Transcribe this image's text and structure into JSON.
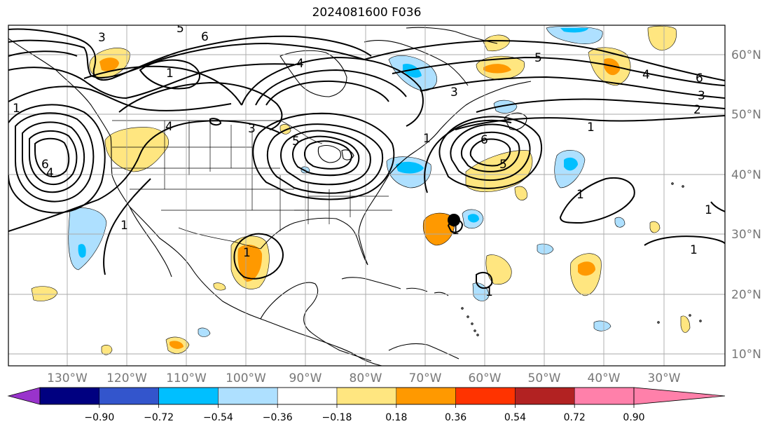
{
  "title": "2024081600 F036",
  "lat_labels": [
    "60°N",
    "50°N",
    "40°N",
    "30°N",
    "20°N",
    "10°N"
  ],
  "lon_labels": [
    "130°W",
    "120°W",
    "110°W",
    "100°W",
    "90°W",
    "80°W",
    "70°W",
    "60°W",
    "50°W",
    "40°W",
    "30°W"
  ],
  "colorbar": {
    "ticks": [
      "−0.90",
      "−0.72",
      "−0.54",
      "−0.36",
      "−0.18",
      "0.18",
      "0.36",
      "0.54",
      "0.72",
      "0.90"
    ],
    "colors": [
      "#9933cc",
      "#000080",
      "#3355cc",
      "#00bfff",
      "#aee0ff",
      "#ffffff",
      "#ffe680",
      "#ff9900",
      "#ff3300",
      "#b22222",
      "#ff80aa"
    ]
  },
  "fill_colors": {
    "light_yellow": "#ffe680",
    "orange": "#ff9900",
    "light_blue": "#aee0ff",
    "blue": "#00bfff"
  },
  "contour_labels": [
    "3",
    "5",
    "6",
    "1",
    "4",
    "1",
    "4",
    "3",
    "6",
    "4",
    "5",
    "1",
    "3",
    "6",
    "5",
    "1",
    "6",
    "5",
    "4",
    "3",
    "2",
    "1",
    "1",
    "1",
    "1",
    "1",
    "1",
    "1"
  ],
  "markers": [
    {
      "name": "black-dot",
      "lon": -65.5,
      "lat": 32.5
    }
  ]
}
